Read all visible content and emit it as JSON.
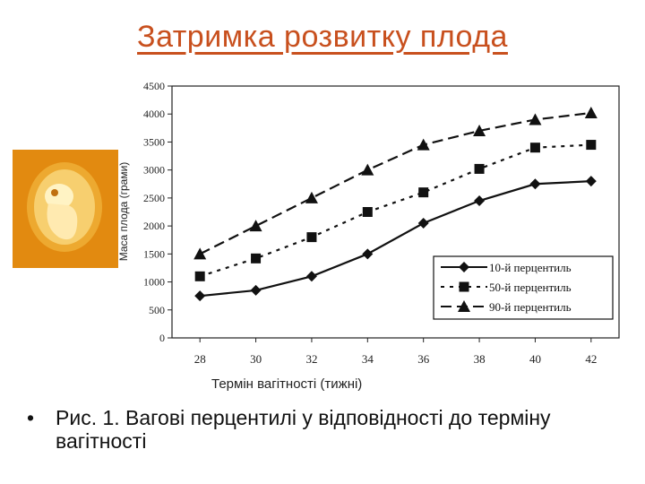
{
  "slide": {
    "title": "Затримка розвитку плода",
    "caption": "Рис. 1. Вагові перцентилі у відповідності до терміну вагітності",
    "bullet": "•"
  },
  "photo": {
    "icon": "embryo-image",
    "background": "#e28a10"
  },
  "chart_data": {
    "type": "line",
    "title": "",
    "xlabel": "Термін вагітності (тижні)",
    "ylabel": "Маса плода (грами)",
    "x": [
      28,
      30,
      32,
      34,
      36,
      38,
      40,
      42
    ],
    "xlim": [
      27,
      43
    ],
    "ylim": [
      0,
      4500
    ],
    "yticks": [
      0,
      500,
      1000,
      1500,
      2000,
      2500,
      3000,
      3500,
      4000,
      4500
    ],
    "grid": false,
    "legend": "bottom-right",
    "series": [
      {
        "name": "10-й перцентиль",
        "marker": "diamond",
        "dash": "solid",
        "values": [
          750,
          850,
          1100,
          1500,
          2050,
          2450,
          2750,
          2800
        ]
      },
      {
        "name": "50-й перцентиль",
        "marker": "square",
        "dash": "dotted",
        "values": [
          1100,
          1420,
          1800,
          2250,
          2600,
          3020,
          3400,
          3450
        ]
      },
      {
        "name": "90-й перцентиль",
        "marker": "triangle",
        "dash": "dashed",
        "values": [
          1500,
          2000,
          2500,
          3000,
          3450,
          3700,
          3900,
          4020
        ]
      }
    ]
  }
}
